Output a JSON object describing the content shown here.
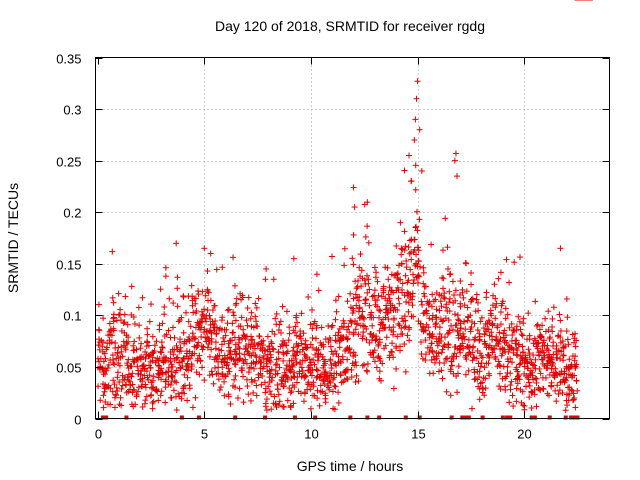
{
  "chart_data": {
    "type": "scatter",
    "title": "Day 120 of 2018, SRMTID for receiver rgdg",
    "xlabel": "GPS time / hours",
    "ylabel": "SRMTID / TECUs",
    "xlim": [
      -0.1,
      24
    ],
    "ylim": [
      0,
      0.35
    ],
    "xticks": [
      0,
      5,
      10,
      15,
      20
    ],
    "xtick_labels": [
      "0",
      "5",
      "10",
      "15",
      "20"
    ],
    "yticks": [
      0,
      0.05,
      0.1,
      0.15,
      0.2,
      0.25,
      0.3,
      0.35
    ],
    "ytick_labels": [
      "0",
      "0.05",
      "0.1",
      "0.15",
      "0.2",
      "0.25",
      "0.3",
      "0.35"
    ],
    "grid": true,
    "marker": "plus",
    "color": "#e00000",
    "points_description_x": [
      0.0,
      0.15,
      0.3,
      0.45,
      0.6,
      0.75,
      0.9,
      1.05,
      1.2,
      1.35,
      1.5,
      1.65,
      1.8,
      1.95,
      2.1,
      2.25,
      2.4,
      2.55,
      2.7,
      2.85,
      3.0,
      3.15,
      3.3,
      3.45,
      3.6,
      3.75,
      3.9,
      4.05,
      4.2,
      4.35,
      4.5,
      4.65,
      4.8,
      4.95,
      5.1,
      5.25,
      5.4,
      5.55,
      5.7,
      5.85,
      6.0,
      6.15,
      6.3,
      6.45,
      6.6,
      6.75,
      6.9,
      7.05,
      7.2,
      7.35,
      7.5,
      7.65,
      7.8,
      7.95,
      8.1,
      8.25,
      8.4,
      8.55,
      8.7,
      8.85,
      9.0,
      9.15,
      9.3,
      9.45,
      9.6,
      9.75,
      9.9,
      10.05,
      10.2,
      10.35,
      10.5,
      10.65,
      10.8,
      10.95,
      11.1,
      11.25,
      11.4,
      11.55,
      11.7,
      11.85,
      12.0,
      12.15,
      12.3,
      12.45,
      12.6,
      12.75,
      12.9,
      13.05,
      13.2,
      13.35,
      13.5,
      13.65,
      13.8,
      13.95,
      14.1,
      14.25,
      14.4,
      14.55,
      14.7,
      14.85,
      15.0,
      15.15,
      15.3,
      15.45,
      15.6,
      15.75,
      15.9,
      16.05,
      16.2,
      16.35,
      16.5,
      16.65,
      16.8,
      16.95,
      17.1,
      17.25,
      17.4,
      17.55,
      17.7,
      17.85,
      18.0,
      18.15,
      18.3,
      18.45,
      18.6,
      18.75,
      18.9,
      19.05,
      19.2,
      19.35,
      19.5,
      19.65,
      19.8,
      19.95,
      20.1,
      20.25,
      20.4,
      20.55,
      20.7,
      20.85,
      21.0,
      21.15,
      21.3,
      21.45,
      21.6,
      21.75,
      21.9,
      22.05,
      22.2,
      22.35,
      22.5,
      22.65,
      22.8,
      22.95
    ],
    "points_description_center": [
      0.055,
      0.05,
      0.05,
      0.06,
      0.07,
      0.065,
      0.06,
      0.055,
      0.05,
      0.045,
      0.045,
      0.05,
      0.05,
      0.045,
      0.05,
      0.055,
      0.06,
      0.05,
      0.045,
      0.05,
      0.055,
      0.05,
      0.045,
      0.05,
      0.055,
      0.06,
      0.06,
      0.06,
      0.065,
      0.07,
      0.075,
      0.08,
      0.075,
      0.08,
      0.085,
      0.08,
      0.07,
      0.06,
      0.055,
      0.055,
      0.06,
      0.065,
      0.07,
      0.075,
      0.075,
      0.07,
      0.065,
      0.06,
      0.06,
      0.065,
      0.06,
      0.055,
      0.05,
      0.05,
      0.055,
      0.05,
      0.05,
      0.05,
      0.045,
      0.05,
      0.055,
      0.06,
      0.06,
      0.055,
      0.05,
      0.05,
      0.055,
      0.055,
      0.05,
      0.05,
      0.05,
      0.045,
      0.05,
      0.055,
      0.06,
      0.065,
      0.065,
      0.07,
      0.08,
      0.085,
      0.09,
      0.1,
      0.1,
      0.11,
      0.115,
      0.1,
      0.09,
      0.09,
      0.085,
      0.09,
      0.1,
      0.105,
      0.11,
      0.115,
      0.12,
      0.13,
      0.125,
      0.13,
      0.14,
      0.15,
      0.14,
      0.1,
      0.09,
      0.085,
      0.08,
      0.08,
      0.085,
      0.09,
      0.09,
      0.085,
      0.08,
      0.08,
      0.075,
      0.075,
      0.08,
      0.085,
      0.085,
      0.08,
      0.075,
      0.07,
      0.065,
      0.07,
      0.075,
      0.08,
      0.08,
      0.075,
      0.07,
      0.07,
      0.065,
      0.06,
      0.06,
      0.06,
      0.055,
      0.055,
      0.05,
      0.05,
      0.05,
      0.055,
      0.06,
      0.06,
      0.065,
      0.065,
      0.06,
      0.055,
      0.05,
      0.045,
      0.04,
      0.04,
      0.04,
      0.045
    ]
  }
}
